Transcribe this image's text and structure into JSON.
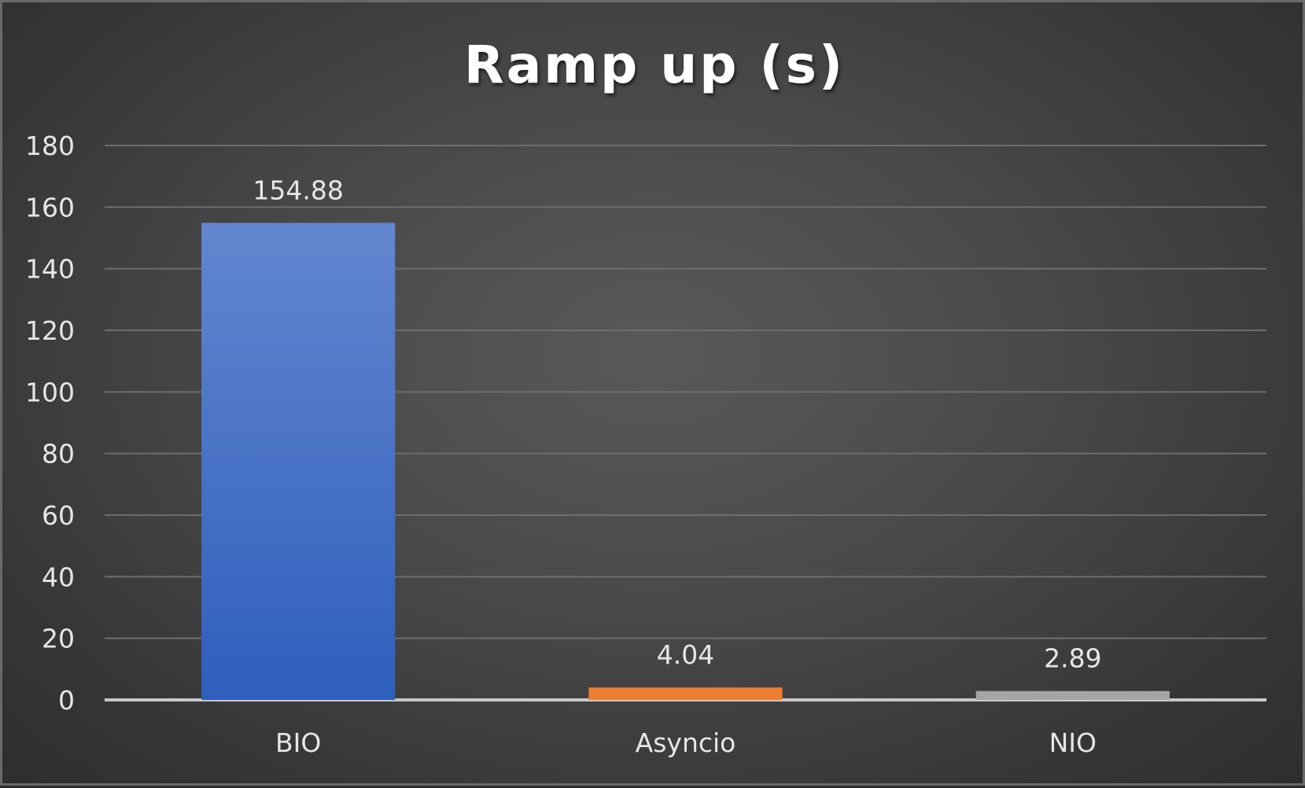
{
  "chart_data": {
    "type": "bar",
    "title": "Ramp up (s)",
    "categories": [
      "BIO",
      "Asyncio",
      "NIO"
    ],
    "values": [
      154.88,
      4.04,
      2.89
    ],
    "data_labels": [
      "154.88",
      "4.04",
      "2.89"
    ],
    "ylim": [
      0,
      180
    ],
    "yticks": [
      0,
      20,
      40,
      60,
      80,
      100,
      120,
      140,
      160,
      180
    ],
    "grid": true,
    "legend": "none",
    "colors": [
      "#4472c4",
      "#ed7d31",
      "#a5a5a5"
    ],
    "background": "#474747"
  }
}
